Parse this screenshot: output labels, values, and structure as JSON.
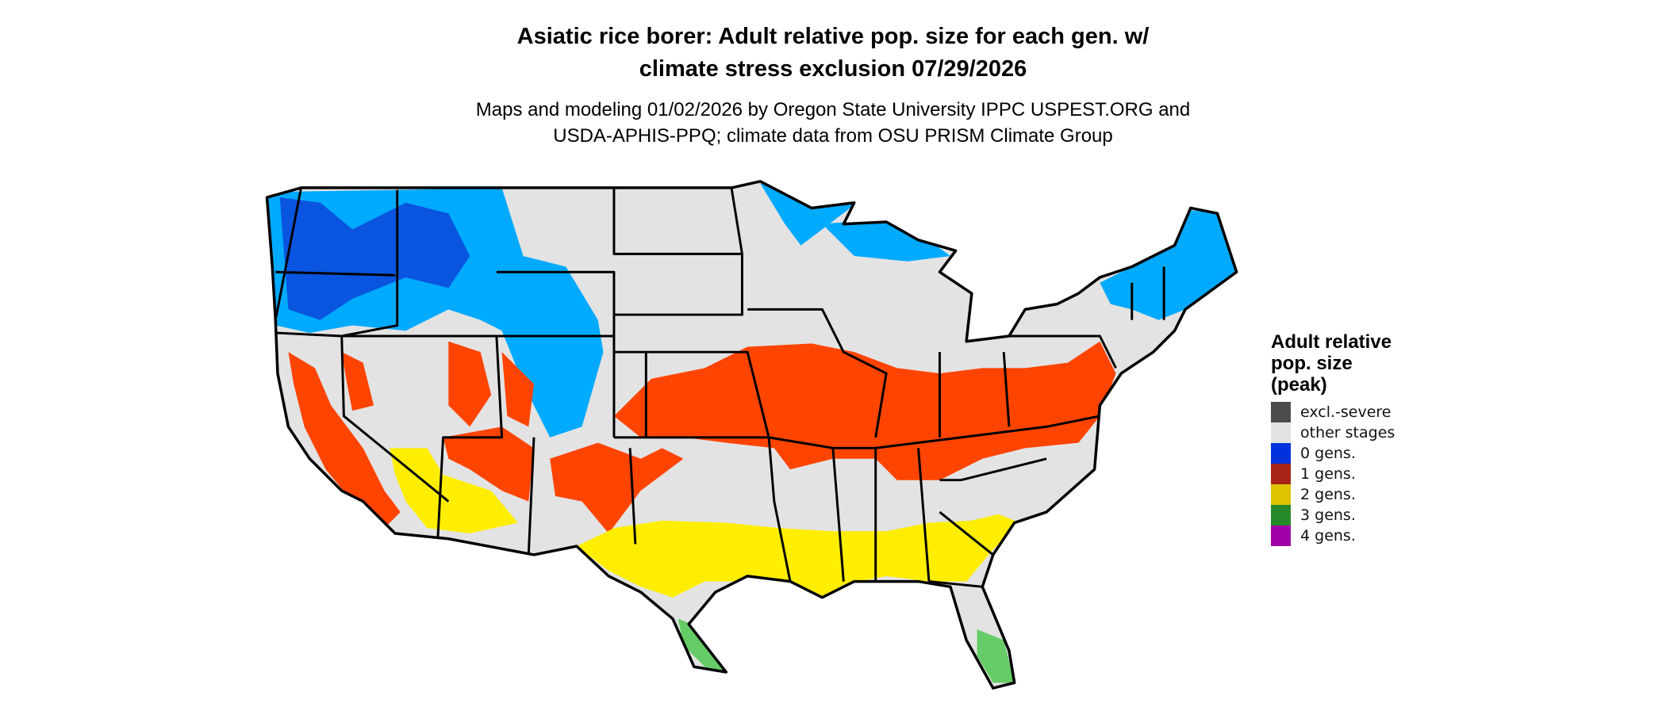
{
  "title": {
    "line1": "Asiatic rice borer: Adult relative pop. size for each gen. w/",
    "line2": "climate stress exclusion 07/29/2026"
  },
  "subtitle": {
    "line1": "Maps and modeling 01/02/2026 by Oregon State University IPPC USPEST.ORG and",
    "line2": "USDA-APHIS-PPQ; climate data from OSU PRISM Climate Group"
  },
  "map": {
    "region": "Contiguous United States",
    "colors": {
      "background_land": "#e3e3e3",
      "zero_gens_mapped": "#00aaff",
      "zero_gens_dark": "#0a55e0",
      "one_gen_mapped": "#ff4400",
      "two_gens_mapped": "#ffee00",
      "three_gens_mapped": "#66cc66",
      "state_borders": "#000000"
    }
  },
  "legend": {
    "title_lines": [
      "Adult relative",
      "pop. size",
      "(peak)"
    ],
    "items": [
      {
        "label": "excl.-severe",
        "color": "#4d4d4d"
      },
      {
        "label": "other stages",
        "color": "#e3e3e3"
      },
      {
        "label": "0 gens.",
        "color": "#0033dd"
      },
      {
        "label": "1 gens.",
        "color": "#a82416"
      },
      {
        "label": "2 gens.",
        "color": "#dcc400"
      },
      {
        "label": "3 gens.",
        "color": "#268a2a"
      },
      {
        "label": "4 gens.",
        "color": "#a000a8"
      }
    ]
  }
}
